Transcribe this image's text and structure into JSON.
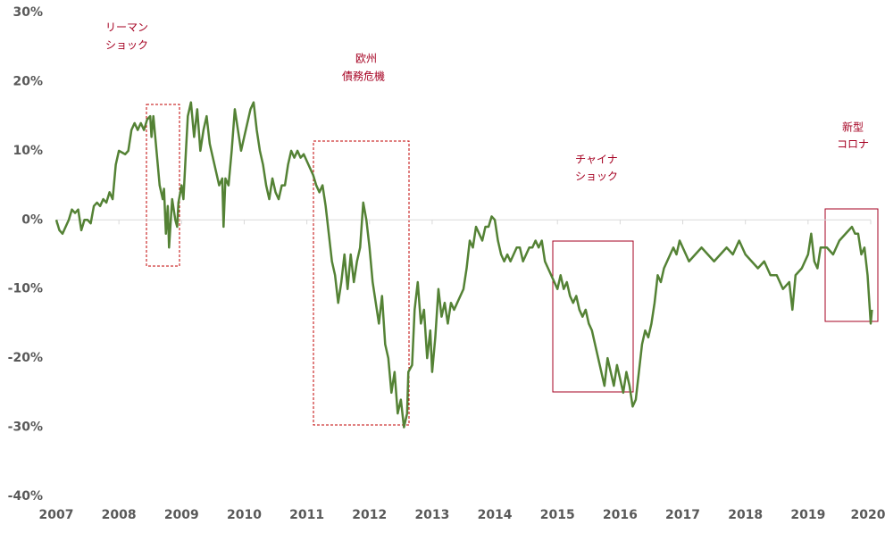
{
  "chart_data": {
    "type": "line",
    "xlim": [
      2007,
      2020
    ],
    "xticks": [
      2007,
      2008,
      2009,
      2010,
      2011,
      2012,
      2013,
      2014,
      2015,
      2016,
      2017,
      2018,
      2019,
      2020
    ],
    "ylim": [
      -40,
      30
    ],
    "yticks": [
      {
        "value": 30,
        "label": "30%"
      },
      {
        "value": 20,
        "label": "20%"
      },
      {
        "value": 10,
        "label": "10%"
      },
      {
        "value": 0,
        "label": "0%"
      },
      {
        "value": -10,
        "label": "-10%"
      },
      {
        "value": -20,
        "label": "-20%"
      },
      {
        "value": -30,
        "label": "-30%"
      },
      {
        "value": -40,
        "label": "-40%"
      }
    ],
    "annotations": [
      {
        "lines": [
          "リーマン",
          "ショック"
        ]
      },
      {
        "lines": [
          "欧州",
          "債務危機"
        ]
      },
      {
        "lines": [
          "チャイナ",
          "ショック"
        ]
      },
      {
        "lines": [
          "新型",
          "コロナ"
        ]
      }
    ],
    "x": [
      2007.0,
      2007.05,
      2007.1,
      2007.15,
      2007.2,
      2007.25,
      2007.3,
      2007.35,
      2007.4,
      2007.45,
      2007.5,
      2007.55,
      2007.6,
      2007.65,
      2007.7,
      2007.75,
      2007.8,
      2007.85,
      2007.9,
      2007.95,
      2008.0,
      2008.1,
      2008.15,
      2008.2,
      2008.25,
      2008.3,
      2008.35,
      2008.4,
      2008.45,
      2008.5,
      2008.52,
      2008.55,
      2008.6,
      2008.65,
      2008.7,
      2008.72,
      2008.75,
      2008.78,
      2008.8,
      2008.85,
      2008.9,
      2008.93,
      2008.95,
      2009.0,
      2009.03,
      2009.07,
      2009.1,
      2009.15,
      2009.2,
      2009.25,
      2009.3,
      2009.35,
      2009.4,
      2009.45,
      2009.5,
      2009.55,
      2009.6,
      2009.65,
      2009.67,
      2009.7,
      2009.75,
      2009.8,
      2009.85,
      2009.9,
      2009.95,
      2010.0,
      2010.05,
      2010.1,
      2010.15,
      2010.2,
      2010.25,
      2010.3,
      2010.35,
      2010.4,
      2010.45,
      2010.5,
      2010.55,
      2010.6,
      2010.65,
      2010.7,
      2010.75,
      2010.8,
      2010.85,
      2010.9,
      2010.95,
      2011.0,
      2011.05,
      2011.1,
      2011.15,
      2011.2,
      2011.25,
      2011.3,
      2011.35,
      2011.4,
      2011.45,
      2011.5,
      2011.55,
      2011.6,
      2011.65,
      2011.7,
      2011.75,
      2011.8,
      2011.85,
      2011.9,
      2011.95,
      2012.0,
      2012.05,
      2012.1,
      2012.15,
      2012.2,
      2012.25,
      2012.3,
      2012.35,
      2012.4,
      2012.45,
      2012.5,
      2012.55,
      2012.6,
      2012.62,
      2012.68,
      2012.72,
      2012.77,
      2012.82,
      2012.87,
      2012.92,
      2012.97,
      2013.0,
      2013.05,
      2013.1,
      2013.15,
      2013.2,
      2013.25,
      2013.3,
      2013.35,
      2013.4,
      2013.45,
      2013.5,
      2013.55,
      2013.6,
      2013.65,
      2013.7,
      2013.75,
      2013.8,
      2013.85,
      2013.9,
      2013.95,
      2014.0,
      2014.05,
      2014.1,
      2014.15,
      2014.2,
      2014.25,
      2014.3,
      2014.35,
      2014.4,
      2014.45,
      2014.5,
      2014.55,
      2014.6,
      2014.65,
      2014.7,
      2014.75,
      2014.8,
      2014.85,
      2014.9,
      2014.95,
      2015.0,
      2015.05,
      2015.1,
      2015.15,
      2015.2,
      2015.25,
      2015.3,
      2015.35,
      2015.4,
      2015.45,
      2015.5,
      2015.55,
      2015.6,
      2015.65,
      2015.7,
      2015.75,
      2015.8,
      2015.85,
      2015.9,
      2015.95,
      2016.0,
      2016.05,
      2016.1,
      2016.15,
      2016.2,
      2016.25,
      2016.3,
      2016.35,
      2016.4,
      2016.45,
      2016.5,
      2016.55,
      2016.6,
      2016.65,
      2016.7,
      2016.75,
      2016.8,
      2016.85,
      2016.9,
      2016.95,
      2017.0,
      2017.1,
      2017.2,
      2017.3,
      2017.4,
      2017.5,
      2017.6,
      2017.7,
      2017.8,
      2017.9,
      2018.0,
      2018.1,
      2018.2,
      2018.3,
      2018.4,
      2018.5,
      2018.6,
      2018.7,
      2018.75,
      2018.8,
      2018.9,
      2019.0,
      2019.05,
      2019.1,
      2019.15,
      2019.2,
      2019.3,
      2019.4,
      2019.5,
      2019.6,
      2019.7,
      2019.75,
      2019.8,
      2019.85,
      2019.9,
      2019.95,
      2020.0,
      2020.02
    ],
    "series": [
      {
        "color": "#548235",
        "values": [
          0,
          -1.5,
          -2,
          -1,
          0,
          1.5,
          1,
          1.5,
          -1.5,
          0,
          0,
          -0.5,
          2,
          2.5,
          2,
          3,
          2.5,
          4,
          3,
          8,
          10,
          9.5,
          10,
          13,
          14,
          13,
          14,
          13,
          14.5,
          15,
          12,
          15,
          10,
          5,
          3,
          4.5,
          -2,
          2,
          -4,
          3,
          0,
          -1,
          2.5,
          5,
          3,
          10,
          15,
          17,
          12,
          16,
          10,
          13,
          15,
          11,
          9,
          7,
          5,
          6,
          -1,
          6,
          5,
          10,
          16,
          13,
          10,
          12,
          14,
          16,
          17,
          13,
          10,
          8,
          5,
          3,
          6,
          4,
          3,
          5,
          5,
          8,
          10,
          9,
          10,
          9,
          9.5,
          8.5,
          7.5,
          6.5,
          5,
          4,
          5,
          2,
          -2,
          -6,
          -8,
          -12,
          -9,
          -5,
          -10,
          -5,
          -9,
          -6,
          -4,
          2.5,
          0,
          -4,
          -9,
          -12,
          -15,
          -11,
          -18,
          -20,
          -25,
          -22,
          -28,
          -26,
          -30,
          -28,
          -22,
          -21,
          -13,
          -9,
          -15,
          -13,
          -20,
          -16,
          -22,
          -17,
          -10,
          -14,
          -12,
          -15,
          -12,
          -13,
          -12,
          -11,
          -10,
          -7,
          -3,
          -4,
          -1,
          -2,
          -3,
          -1,
          -1,
          0.5,
          0,
          -3,
          -5,
          -6,
          -5,
          -6,
          -5,
          -4,
          -4,
          -6,
          -5,
          -4,
          -4,
          -3,
          -4,
          -3,
          -6,
          -7,
          -8,
          -9,
          -10,
          -8,
          -10,
          -9,
          -11,
          -12,
          -11,
          -13,
          -14,
          -13,
          -15,
          -16,
          -18,
          -20,
          -22,
          -24,
          -20,
          -22,
          -24,
          -21,
          -23,
          -25,
          -22,
          -24,
          -27,
          -26,
          -22,
          -18,
          -16,
          -17,
          -15,
          -12,
          -8,
          -9,
          -7,
          -6,
          -5,
          -4,
          -5,
          -3,
          -4,
          -6,
          -5,
          -4,
          -5,
          -6,
          -5,
          -4,
          -5,
          -3,
          -5,
          -6,
          -7,
          -6,
          -8,
          -8,
          -10,
          -9,
          -13,
          -8,
          -7,
          -5,
          -2,
          -6,
          -7,
          -4,
          -4,
          -5,
          -3,
          -2,
          -1,
          -2,
          -2,
          -5,
          -4,
          -8,
          -15,
          -13
        ]
      }
    ]
  }
}
